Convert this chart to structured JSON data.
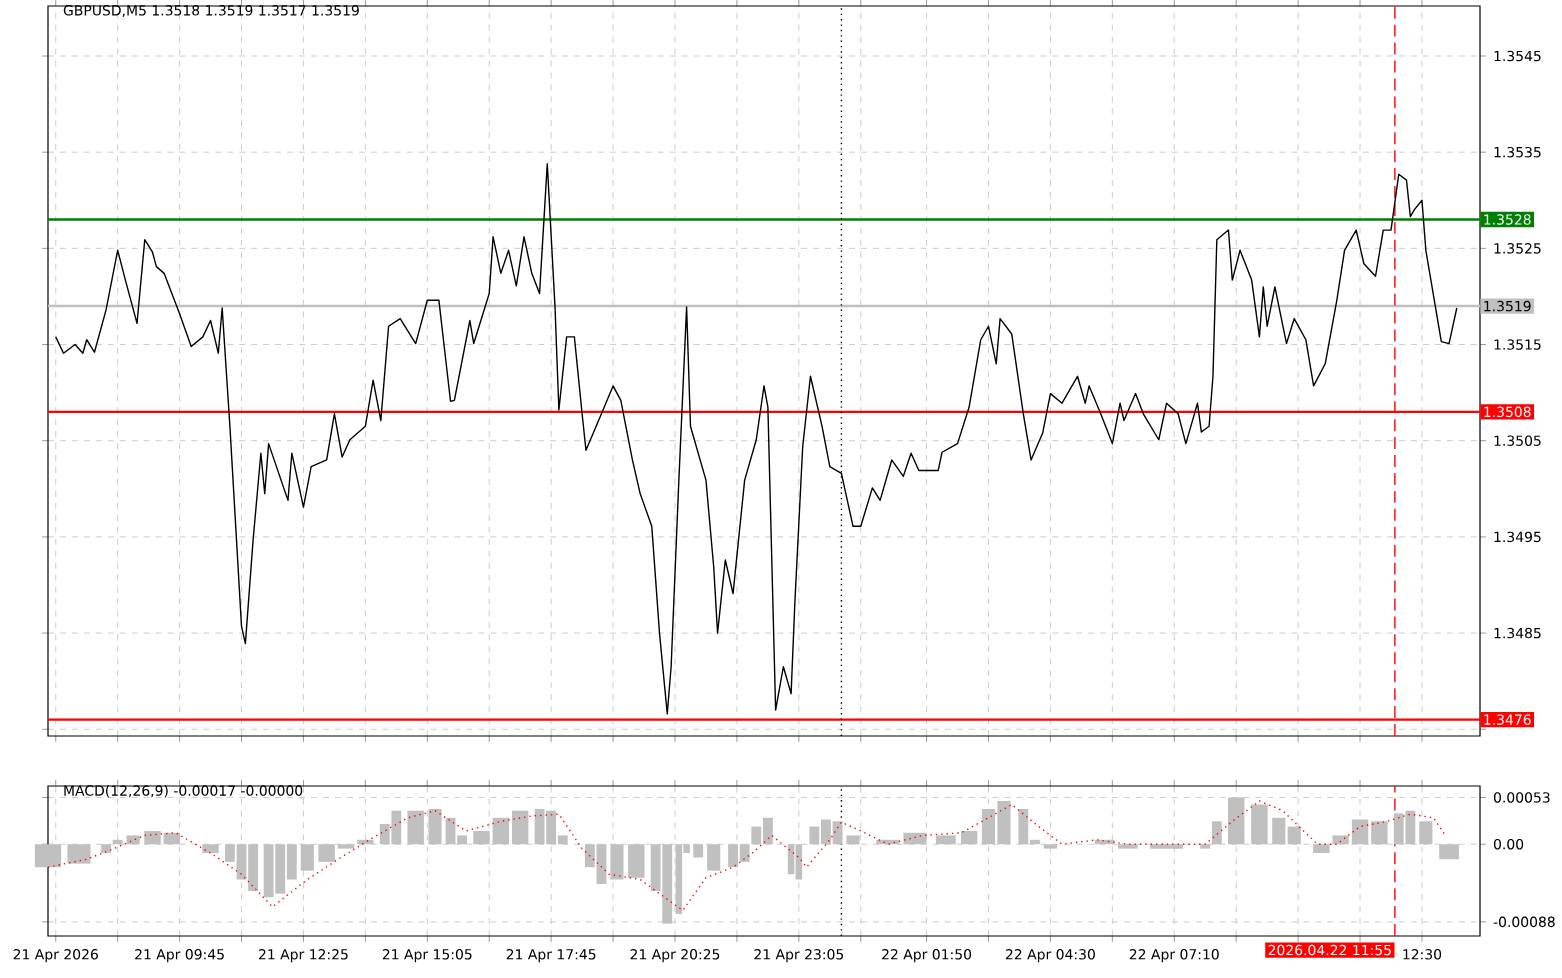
{
  "chart_data": [
    {
      "type": "line",
      "title": "GBPUSD,M5 1.3518 1.3519 1.3517 1.3519",
      "grid": true,
      "tick_labels": "y",
      "xlim": [
        "2026-04-21T06:55",
        "2026-04-22T13:45"
      ],
      "ylim": [
        1.34743,
        1.35502
      ],
      "xticks": [
        {
          "value": "2026-04-21T07:05",
          "label": null
        },
        {
          "value": "2026-04-21T08:25",
          "label": null
        },
        {
          "value": "2026-04-21T09:45",
          "label": null
        },
        {
          "value": "2026-04-21T11:05",
          "label": null
        },
        {
          "value": "2026-04-21T12:25",
          "label": null
        },
        {
          "value": "2026-04-21T13:45",
          "label": null
        },
        {
          "value": "2026-04-21T15:05",
          "label": null
        },
        {
          "value": "2026-04-21T16:25",
          "label": null
        },
        {
          "value": "2026-04-21T17:45",
          "label": null
        },
        {
          "value": "2026-04-21T19:05",
          "label": null
        },
        {
          "value": "2026-04-21T20:25",
          "label": null
        },
        {
          "value": "2026-04-21T21:45",
          "label": null
        },
        {
          "value": "2026-04-21T23:05",
          "label": null
        },
        {
          "value": "2026-04-22T00:25",
          "label": null
        },
        {
          "value": "2026-04-22T01:50",
          "label": null
        },
        {
          "value": "2026-04-22T03:10",
          "label": null
        },
        {
          "value": "2026-04-22T04:30",
          "label": null
        },
        {
          "value": "2026-04-22T05:50",
          "label": null
        },
        {
          "value": "2026-04-22T07:10",
          "label": null
        },
        {
          "value": "2026-04-22T08:30",
          "label": null
        },
        {
          "value": "2026-04-22T09:50",
          "label": null
        },
        {
          "value": "2026-04-22T11:10",
          "label": null
        },
        {
          "value": "2026-04-22T12:30",
          "label": null
        }
      ],
      "yticks": [
        1.3545,
        1.3535,
        1.3525,
        1.3515,
        1.3505,
        1.3495,
        1.3485,
        {
          "value": 1.3475,
          "label": null
        }
      ],
      "ref_lines": [
        {
          "axis": "y",
          "value": 1.3528,
          "label": "1.3528",
          "color": "#008000",
          "line_style": "solid"
        },
        {
          "axis": "y",
          "value": 1.3519,
          "label": "1.3519",
          "color": "#c0c0c0",
          "line_style": "solid"
        },
        {
          "axis": "y",
          "value": 1.3508,
          "label": "1.3508",
          "color": "#ff0000",
          "line_style": "solid"
        },
        {
          "axis": "y",
          "value": 1.3476,
          "label": "1.3476",
          "color": "#ff0000",
          "line_style": "solid"
        },
        {
          "axis": "x",
          "value": "2026-04-22T00:00",
          "color": "#000000",
          "line_style": "dotted"
        },
        {
          "axis": "x",
          "value": "2026-04-22T11:55",
          "color": "#ff0000",
          "line_style": "dashed"
        }
      ],
      "series": [
        {
          "color": "#000000",
          "line_style": "solid",
          "x": [
            "2026-04-21T07:05",
            "2026-04-21T07:15",
            "2026-04-21T07:30",
            "2026-04-21T07:40",
            "2026-04-21T07:45",
            "2026-04-21T07:55",
            "2026-04-21T08:10",
            "2026-04-21T08:25",
            "2026-04-21T08:35",
            "2026-04-21T08:50",
            "2026-04-21T09:00",
            "2026-04-21T09:10",
            "2026-04-21T09:15",
            "2026-04-21T09:25",
            "2026-04-21T09:35",
            "2026-04-21T09:45",
            "2026-04-21T10:00",
            "2026-04-21T10:15",
            "2026-04-21T10:25",
            "2026-04-21T10:35",
            "2026-04-21T10:40",
            "2026-04-21T10:50",
            "2026-04-21T11:05",
            "2026-04-21T11:10",
            "2026-04-21T11:20",
            "2026-04-21T11:30",
            "2026-04-21T11:35",
            "2026-04-21T11:40",
            "2026-04-21T12:05",
            "2026-04-21T12:10",
            "2026-04-21T12:25",
            "2026-04-21T12:35",
            "2026-04-21T12:55",
            "2026-04-21T13:05",
            "2026-04-21T13:15",
            "2026-04-21T13:25",
            "2026-04-21T13:45",
            "2026-04-21T13:55",
            "2026-04-21T14:05",
            "2026-04-21T14:15",
            "2026-04-21T14:30",
            "2026-04-21T14:50",
            "2026-04-21T15:05",
            "2026-04-21T15:20",
            "2026-04-21T15:35",
            "2026-04-21T15:40",
            "2026-04-21T16:00",
            "2026-04-21T16:05",
            "2026-04-21T16:25",
            "2026-04-21T16:30",
            "2026-04-21T16:40",
            "2026-04-21T16:50",
            "2026-04-21T17:00",
            "2026-04-21T17:10",
            "2026-04-21T17:20",
            "2026-04-21T17:30",
            "2026-04-21T17:40",
            "2026-04-21T17:50",
            "2026-04-21T17:55",
            "2026-04-21T18:05",
            "2026-04-21T18:15",
            "2026-04-21T18:25",
            "2026-04-21T18:30",
            "2026-04-21T18:50",
            "2026-04-21T19:05",
            "2026-04-21T19:15",
            "2026-04-21T19:30",
            "2026-04-21T19:40",
            "2026-04-21T19:55",
            "2026-04-21T20:05",
            "2026-04-21T20:15",
            "2026-04-21T20:20",
            "2026-04-21T20:30",
            "2026-04-21T20:40",
            "2026-04-21T20:45",
            "2026-04-21T21:05",
            "2026-04-21T21:15",
            "2026-04-21T21:20",
            "2026-04-21T21:30",
            "2026-04-21T21:40",
            "2026-04-21T21:55",
            "2026-04-21T22:10",
            "2026-04-21T22:20",
            "2026-04-21T22:25",
            "2026-04-21T22:35",
            "2026-04-21T22:45",
            "2026-04-21T22:55",
            "2026-04-21T23:00",
            "2026-04-21T23:10",
            "2026-04-21T23:20",
            "2026-04-21T23:35",
            "2026-04-21T23:45",
            "2026-04-22T00:00",
            "2026-04-22T00:15",
            "2026-04-22T00:25",
            "2026-04-22T00:40",
            "2026-04-22T00:50",
            "2026-04-22T01:05",
            "2026-04-22T01:20",
            "2026-04-22T01:30",
            "2026-04-22T01:40",
            "2026-04-22T02:05",
            "2026-04-22T02:10",
            "2026-04-22T02:30",
            "2026-04-22T02:45",
            "2026-04-22T03:00",
            "2026-04-22T03:10",
            "2026-04-22T03:20",
            "2026-04-22T03:25",
            "2026-04-22T03:40",
            "2026-04-22T03:55",
            "2026-04-22T04:05",
            "2026-04-22T04:20",
            "2026-04-22T04:30",
            "2026-04-22T04:45",
            "2026-04-22T05:05",
            "2026-04-22T05:15",
            "2026-04-22T05:20",
            "2026-04-22T05:35",
            "2026-04-22T05:50",
            "2026-04-22T06:00",
            "2026-04-22T06:05",
            "2026-04-22T06:20",
            "2026-04-22T06:30",
            "2026-04-22T06:50",
            "2026-04-22T07:00",
            "2026-04-22T07:15",
            "2026-04-22T07:25",
            "2026-04-22T07:40",
            "2026-04-22T07:45",
            "2026-04-22T07:55",
            "2026-04-22T08:00",
            "2026-04-22T08:05",
            "2026-04-22T08:20",
            "2026-04-22T08:25",
            "2026-04-22T08:35",
            "2026-04-22T08:50",
            "2026-04-22T09:00",
            "2026-04-22T09:05",
            "2026-04-22T09:10",
            "2026-04-22T09:20",
            "2026-04-22T09:35",
            "2026-04-22T09:45",
            "2026-04-22T10:00",
            "2026-04-22T10:10",
            "2026-04-22T10:25",
            "2026-04-22T10:40",
            "2026-04-22T10:50",
            "2026-04-22T11:05",
            "2026-04-22T11:15",
            "2026-04-22T11:30",
            "2026-04-22T11:40",
            "2026-04-22T11:50",
            "2026-04-22T12:00",
            "2026-04-22T12:10",
            "2026-04-22T12:15",
            "2026-04-22T12:20",
            "2026-04-22T12:30",
            "2026-04-22T12:35",
            "2026-04-22T12:55",
            "2026-04-22T13:05",
            "2026-04-22T13:15"
          ],
          "values": [
            1.35158,
            1.35141,
            1.3515,
            1.35141,
            1.35155,
            1.35142,
            1.35186,
            1.35248,
            1.35217,
            1.35172,
            1.35259,
            1.35246,
            1.35231,
            1.35224,
            1.35203,
            1.35182,
            1.35148,
            1.35158,
            1.35175,
            1.35141,
            1.35188,
            1.35065,
            1.34857,
            1.34839,
            1.34947,
            1.35037,
            1.34995,
            1.35047,
            1.34988,
            1.35037,
            1.34981,
            1.35023,
            1.3503,
            1.35078,
            1.35033,
            1.35051,
            1.35065,
            1.35113,
            1.35071,
            1.35169,
            1.35177,
            1.35151,
            1.35196,
            1.35196,
            1.35091,
            1.35092,
            1.35175,
            1.35151,
            1.35203,
            1.35262,
            1.35224,
            1.35248,
            1.35211,
            1.35262,
            1.35224,
            1.35203,
            1.35338,
            1.35189,
            1.35082,
            1.35158,
            1.35158,
            1.35078,
            1.3504,
            1.35078,
            1.35107,
            1.35092,
            1.3503,
            1.34995,
            1.34961,
            1.3485,
            1.34766,
            1.34815,
            1.35009,
            1.35189,
            1.35065,
            1.35009,
            1.34919,
            1.3485,
            1.34926,
            1.34891,
            1.35009,
            1.35051,
            1.35107,
            1.35085,
            1.3477,
            1.34815,
            1.34787,
            1.34884,
            1.35044,
            1.35117,
            1.35065,
            1.35023,
            1.35016,
            1.34961,
            1.34961,
            1.35001,
            1.34988,
            1.3503,
            1.35013,
            1.35037,
            1.35019,
            1.35019,
            1.35038,
            1.35047,
            1.35085,
            1.35155,
            1.35169,
            1.3513,
            1.35177,
            1.35161,
            1.35078,
            1.3503,
            1.35058,
            1.35099,
            1.35089,
            1.35117,
            1.35089,
            1.35107,
            1.35078,
            1.35047,
            1.35089,
            1.35071,
            1.35099,
            1.35078,
            1.35051,
            1.35089,
            1.35078,
            1.35047,
            1.35089,
            1.35059,
            1.35065,
            1.35117,
            1.35259,
            1.35269,
            1.35217,
            1.35248,
            1.35217,
            1.35158,
            1.3521,
            1.35169,
            1.3521,
            1.35151,
            1.35177,
            1.35155,
            1.35107,
            1.3513,
            1.35196,
            1.35248,
            1.35269,
            1.35234,
            1.35221,
            1.35269,
            1.35269,
            1.35327,
            1.35321,
            1.35283,
            1.3529,
            1.353,
            1.35248,
            1.35153,
            1.35151,
            1.35188
          ]
        }
      ]
    },
    {
      "type": "bar",
      "title": "MACD(12,26,9) -0.00017 -0.00000",
      "grid": true,
      "xlim": [
        "2026-04-21T06:55",
        "2026-04-22T13:45"
      ],
      "ylim": [
        -0.00104,
        0.00066
      ],
      "xticks": [
        {
          "value": "2026-04-21T07:05",
          "label": "21 Apr 2026"
        },
        {
          "value": "2026-04-21T08:25",
          "label": null
        },
        {
          "value": "2026-04-21T09:45",
          "label": "21 Apr 09:45"
        },
        {
          "value": "2026-04-21T11:05",
          "label": null
        },
        {
          "value": "2026-04-21T12:25",
          "label": "21 Apr 12:25"
        },
        {
          "value": "2026-04-21T13:45",
          "label": null
        },
        {
          "value": "2026-04-21T15:05",
          "label": "21 Apr 15:05"
        },
        {
          "value": "2026-04-21T16:25",
          "label": null
        },
        {
          "value": "2026-04-21T17:45",
          "label": "21 Apr 17:45"
        },
        {
          "value": "2026-04-21T19:05",
          "label": null
        },
        {
          "value": "2026-04-21T20:25",
          "label": "21 Apr 20:25"
        },
        {
          "value": "2026-04-21T21:45",
          "label": null
        },
        {
          "value": "2026-04-21T23:05",
          "label": "21 Apr 23:05"
        },
        {
          "value": "2026-04-22T00:25",
          "label": null
        },
        {
          "value": "2026-04-22T01:50",
          "label": "22 Apr 01:50"
        },
        {
          "value": "2026-04-22T03:10",
          "label": null
        },
        {
          "value": "2026-04-22T04:30",
          "label": "22 Apr 04:30"
        },
        {
          "value": "2026-04-22T05:50",
          "label": null
        },
        {
          "value": "2026-04-22T07:10",
          "label": "22 Apr 07:10"
        },
        {
          "value": "2026-04-22T08:30",
          "label": null
        },
        {
          "value": "2026-04-22T09:50",
          "label": null
        },
        {
          "value": "2026-04-22T11:10",
          "label": null
        },
        {
          "value": "2026-04-22T12:30",
          "label": "12:30"
        }
      ],
      "yticks": [
        0.00053,
        {
          "value": 0,
          "label": "0.00"
        },
        -0.00088
      ],
      "ref_lines": [
        {
          "axis": "x",
          "value": "2026-04-22T00:00",
          "color": "#000000",
          "line_style": "dotted"
        },
        {
          "axis": "x",
          "value": "2026-04-22T11:55",
          "label": "2026.04.22 11:55",
          "color": "#ff0000",
          "line_style": "dashed"
        }
      ],
      "series": [
        {
          "color": "#c0c0c0",
          "x": [
            "2026-04-21T06:55",
            "2026-04-21T07:35",
            "2026-04-21T08:10",
            "2026-04-21T08:25",
            "2026-04-21T08:45",
            "2026-04-21T09:10",
            "2026-04-21T09:35",
            "2026-04-21T10:25",
            "2026-04-21T10:50",
            "2026-04-21T11:05",
            "2026-04-21T11:20",
            "2026-04-21T11:40",
            "2026-04-21T11:55",
            "2026-04-21T12:10",
            "2026-04-21T12:30",
            "2026-04-21T12:55",
            "2026-04-21T13:20",
            "2026-04-21T13:45",
            "2026-04-21T14:10",
            "2026-04-21T14:25",
            "2026-04-21T14:50",
            "2026-04-21T15:15",
            "2026-04-21T15:35",
            "2026-04-21T15:50",
            "2026-04-21T16:15",
            "2026-04-21T16:40",
            "2026-04-21T17:05",
            "2026-04-21T17:30",
            "2026-04-21T17:45",
            "2026-04-21T18:00",
            "2026-04-21T18:35",
            "2026-04-21T18:50",
            "2026-04-21T19:10",
            "2026-04-21T19:35",
            "2026-04-21T20:00",
            "2026-04-21T20:15",
            "2026-04-21T20:30",
            "2026-04-21T20:40",
            "2026-04-21T20:55",
            "2026-04-21T21:15",
            "2026-04-21T21:40",
            "2026-04-21T21:55",
            "2026-04-21T22:10",
            "2026-04-21T22:25",
            "2026-04-21T22:55",
            "2026-04-21T23:05",
            "2026-04-21T23:25",
            "2026-04-21T23:40",
            "2026-04-21T23:55",
            "2026-04-22T00:15",
            "2026-04-22T01:00",
            "2026-04-22T01:35",
            "2026-04-22T02:15",
            "2026-04-22T02:45",
            "2026-04-22T03:10",
            "2026-04-22T03:30",
            "2026-04-22T03:55",
            "2026-04-22T04:10",
            "2026-04-22T04:30",
            "2026-04-22T05:40",
            "2026-04-22T06:10",
            "2026-04-22T07:00",
            "2026-04-22T07:50",
            "2026-04-22T08:05",
            "2026-04-22T08:30",
            "2026-04-22T09:00",
            "2026-04-22T09:25",
            "2026-04-22T09:45",
            "2026-04-22T10:20",
            "2026-04-22T10:45",
            "2026-04-22T11:10",
            "2026-04-22T11:35",
            "2026-04-22T12:00",
            "2026-04-22T12:15",
            "2026-04-22T12:35",
            "2026-04-22T13:05"
          ],
          "values": [
            -0.00026,
            -0.00022,
            -0.0001,
            5e-05,
            0.0001,
            0.00015,
            0.00013,
            -0.0001,
            -0.0002,
            -0.0004,
            -0.00053,
            -0.0006,
            -0.00056,
            -0.0004,
            -0.0003,
            -0.0002,
            -5e-05,
            5e-05,
            0.00023,
            0.00038,
            0.00038,
            0.0004,
            0.0003,
            0.0001,
            0.00015,
            0.0003,
            0.00038,
            0.0004,
            0.00038,
            0.0001,
            -0.00026,
            -0.00045,
            -0.0004,
            -0.00038,
            -0.00053,
            -0.0009,
            -0.00079,
            -0.0001,
            -0.00015,
            -0.0003,
            -0.00026,
            -0.0002,
            0.0002,
            0.0003,
            -0.00034,
            -0.0004,
            0.0002,
            0.00028,
            0.00026,
            0.0001,
            5e-05,
            0.00013,
            0.0001,
            0.00015,
            0.0004,
            0.00049,
            0.0004,
            5e-05,
            -5e-05,
            5e-05,
            -5e-05,
            -5e-05,
            -5e-05,
            0.00026,
            0.00053,
            0.00045,
            0.0003,
            0.0002,
            -0.0001,
            0.0001,
            0.00028,
            0.00026,
            0.00035,
            0.00038,
            0.00026,
            -0.00017
          ]
        },
        {
          "type": "line",
          "color": "#ff0000",
          "line_style": "dotted",
          "x": [
            "2026-04-21T06:55",
            "2026-04-21T07:45",
            "2026-04-21T08:20",
            "2026-04-21T09:00",
            "2026-04-21T09:40",
            "2026-04-21T10:25",
            "2026-04-21T11:05",
            "2026-04-21T11:45",
            "2026-04-21T12:30",
            "2026-04-21T13:10",
            "2026-04-21T13:50",
            "2026-04-21T14:40",
            "2026-04-21T15:15",
            "2026-04-21T15:55",
            "2026-04-21T16:40",
            "2026-04-21T17:20",
            "2026-04-21T17:55",
            "2026-04-21T18:25",
            "2026-04-21T19:00",
            "2026-04-21T19:40",
            "2026-04-21T20:05",
            "2026-04-21T20:35",
            "2026-04-21T21:05",
            "2026-04-21T21:40",
            "2026-04-21T22:05",
            "2026-04-21T22:30",
            "2026-04-21T23:05",
            "2026-04-21T23:15",
            "2026-04-21T23:45",
            "2026-04-22T00:00",
            "2026-04-22T00:30",
            "2026-04-22T01:00",
            "2026-04-22T01:45",
            "2026-04-22T02:35",
            "2026-04-22T03:10",
            "2026-04-22T03:40",
            "2026-04-22T04:15",
            "2026-04-22T04:45",
            "2026-04-22T05:30",
            "2026-04-22T06:10",
            "2026-04-22T07:50",
            "2026-04-22T08:25",
            "2026-04-22T09:00",
            "2026-04-22T09:30",
            "2026-04-22T10:15",
            "2026-04-22T10:40",
            "2026-04-22T11:10",
            "2026-04-22T11:45",
            "2026-04-22T12:15",
            "2026-04-22T12:45",
            "2026-04-22T13:00"
          ],
          "values": [
            -0.00026,
            -0.00017,
            -5e-05,
            0.0001,
            0.00013,
            -0.0001,
            -0.00034,
            -0.00071,
            -0.0004,
            -0.00017,
            5e-05,
            0.0003,
            0.00038,
            0.00015,
            0.00026,
            0.00032,
            0.00034,
            -5e-05,
            -0.00034,
            -0.0004,
            -0.00056,
            -0.00075,
            -0.00038,
            -0.00026,
            -0.0001,
            0.0001,
            -0.00015,
            -0.00026,
            5e-05,
            0.00025,
            0.00013,
            0,
            0.0001,
            0.00013,
            0.0003,
            0.00045,
            0.0002,
            0,
            5e-05,
            0,
            0,
            0.00026,
            0.00049,
            0.00038,
            0,
            0,
            0.0002,
            0.00026,
            0.00034,
            0.0003,
            0.0001
          ]
        }
      ]
    }
  ]
}
